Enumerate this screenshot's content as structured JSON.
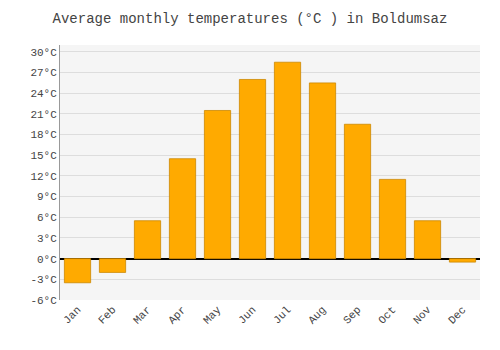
{
  "chart_data": {
    "type": "bar",
    "title": "Average monthly temperatures (°C ) in Boldumsaz",
    "categories": [
      "Jan",
      "Feb",
      "Mar",
      "Apr",
      "May",
      "Jun",
      "Jul",
      "Aug",
      "Sep",
      "Oct",
      "Nov",
      "Dec"
    ],
    "values": [
      -3.5,
      -2.0,
      5.5,
      14.5,
      21.5,
      26.0,
      28.5,
      25.5,
      19.5,
      11.5,
      5.5,
      -0.5
    ],
    "color": "#FFAA00",
    "ylim": [
      -6,
      31
    ],
    "yticks": [
      {
        "value": -6,
        "label": "-6°C"
      },
      {
        "value": -3,
        "label": "-3°C"
      },
      {
        "value": 0,
        "label": "0°C"
      },
      {
        "value": 3,
        "label": "3°C"
      },
      {
        "value": 6,
        "label": "6°C"
      },
      {
        "value": 9,
        "label": "9°C"
      },
      {
        "value": 12,
        "label": "12°C"
      },
      {
        "value": 15,
        "label": "15°C"
      },
      {
        "value": 18,
        "label": "18°C"
      },
      {
        "value": 21,
        "label": "21°C"
      },
      {
        "value": 24,
        "label": "24°C"
      },
      {
        "value": 27,
        "label": "27°C"
      },
      {
        "value": 30,
        "label": "30°C"
      }
    ],
    "grid": true
  }
}
